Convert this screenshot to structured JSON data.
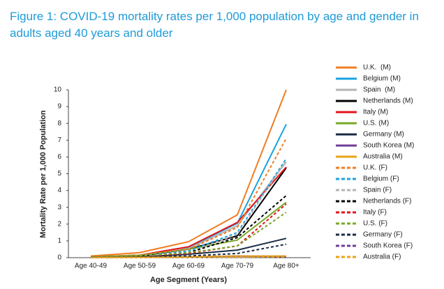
{
  "chart_data": {
    "type": "line",
    "title": "Figure 1: COVID-19 mortality rates per 1,000 population by age and gender in adults aged 40 years and older",
    "title_color": "#1e9bd7",
    "x_label": "Age Segment (Years)",
    "y_label": "Mortality Rate per 1,000 Population",
    "categories": [
      "Age 40-49",
      "Age 50-59",
      "Age 60-69",
      "Age 70-79",
      "Age 80+"
    ],
    "ylim": [
      0,
      10
    ],
    "yticks": [
      0,
      1,
      2,
      3,
      4,
      5,
      6,
      7,
      8,
      9,
      10
    ],
    "grid": false,
    "series": [
      {
        "name": "U.K.  (M)",
        "color": "#f07d22",
        "dash": false,
        "values": [
          0.1,
          0.3,
          0.95,
          2.55,
          10
        ]
      },
      {
        "name": "Belgium (M)",
        "color": "#1aa3e0",
        "dash": false,
        "values": [
          0.05,
          0.15,
          0.6,
          2.05,
          7.95
        ]
      },
      {
        "name": "Spain  (M)",
        "color": "#b3b3b3",
        "dash": false,
        "values": [
          0.05,
          0.15,
          0.55,
          1.9,
          5.7
        ]
      },
      {
        "name": "Netherlands (M)",
        "color": "#000000",
        "dash": false,
        "values": [
          0.05,
          0.1,
          0.5,
          1.3,
          5.35
        ]
      },
      {
        "name": "Italy (M)",
        "color": "#e3141b",
        "dash": false,
        "values": [
          0.05,
          0.15,
          0.65,
          2.1,
          5.4
        ]
      },
      {
        "name": "U.S. (M)",
        "color": "#7aa82a",
        "dash": false,
        "values": [
          0.05,
          0.15,
          0.5,
          1.05,
          3.3
        ]
      },
      {
        "name": "Germany (M)",
        "color": "#1a2c44",
        "dash": false,
        "values": [
          0.02,
          0.05,
          0.2,
          0.45,
          1.15
        ]
      },
      {
        "name": "South Korea (M)",
        "color": "#6f3c96",
        "dash": false,
        "values": [
          0.01,
          0.02,
          0.05,
          0.1,
          0.05
        ]
      },
      {
        "name": "Australia (M)",
        "color": "#e8a317",
        "dash": false,
        "values": [
          0.01,
          0.02,
          0.05,
          0.1,
          0.1
        ]
      },
      {
        "name": "U.K. (F)",
        "color": "#f07d22",
        "dash": true,
        "values": [
          0.05,
          0.15,
          0.5,
          1.8,
          7.1
        ]
      },
      {
        "name": "Belgium (F)",
        "color": "#1aa3e0",
        "dash": true,
        "values": [
          0.03,
          0.1,
          0.4,
          1.5,
          5.9
        ]
      },
      {
        "name": "Spain (F)",
        "color": "#b3b3b3",
        "dash": true,
        "values": [
          0.03,
          0.08,
          0.3,
          1.4,
          5.8
        ]
      },
      {
        "name": "Netherlands (F)",
        "color": "#000000",
        "dash": true,
        "values": [
          0.03,
          0.08,
          0.3,
          1.2,
          3.7
        ]
      },
      {
        "name": "Italy (F)",
        "color": "#e3141b",
        "dash": true,
        "values": [
          0.02,
          0.08,
          0.25,
          0.7,
          3.2
        ]
      },
      {
        "name": "U.S. (F)",
        "color": "#7aa82a",
        "dash": true,
        "values": [
          0.03,
          0.1,
          0.3,
          0.7,
          2.7
        ]
      },
      {
        "name": "Germany (F)",
        "color": "#1a2c44",
        "dash": true,
        "values": [
          0.01,
          0.03,
          0.1,
          0.25,
          0.8
        ]
      },
      {
        "name": "South Korea (F)",
        "color": "#6f3c96",
        "dash": true,
        "values": [
          0.01,
          0.01,
          0.02,
          0.05,
          0.05
        ]
      },
      {
        "name": "Australia (F)",
        "color": "#e8a317",
        "dash": true,
        "values": [
          0.01,
          0.01,
          0.02,
          0.03,
          0.05
        ]
      }
    ]
  }
}
